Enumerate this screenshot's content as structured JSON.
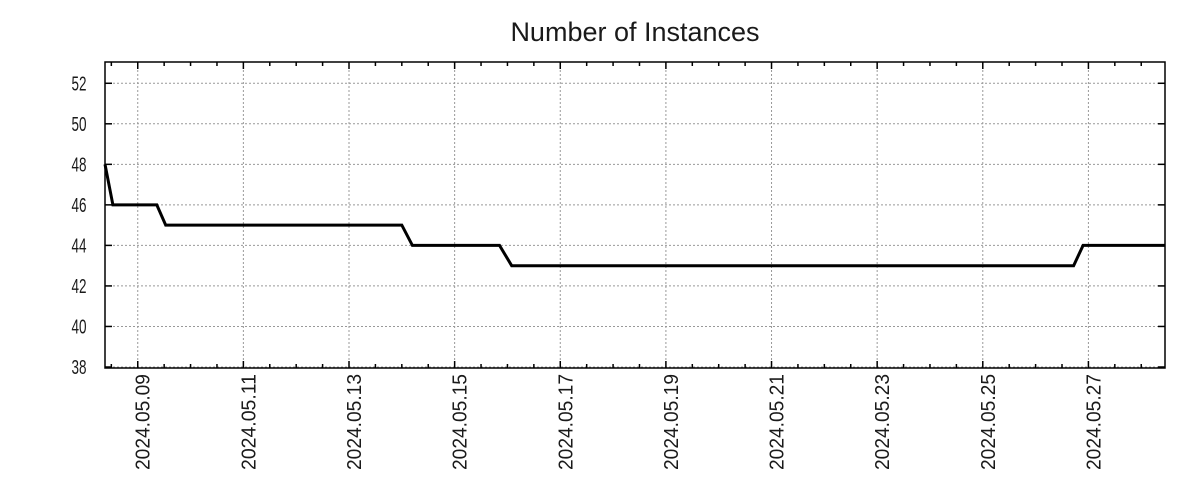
{
  "chart_data": {
    "type": "line",
    "title": "Number of Instances",
    "xlabel": "",
    "ylabel": "",
    "grid": true,
    "legend": "none",
    "x_unit": "day of May 2024 (fractional)",
    "xlim": [
      8.38,
      28.45
    ],
    "ylim": [
      37.95,
      53.05
    ],
    "x_minor_step": 0.5,
    "x_ticks": [
      {
        "day": 9,
        "label": "2024.05.09"
      },
      {
        "day": 11,
        "label": "2024.05.11"
      },
      {
        "day": 13,
        "label": "2024.05.13"
      },
      {
        "day": 15,
        "label": "2024.05.15"
      },
      {
        "day": 17,
        "label": "2024.05.17"
      },
      {
        "day": 19,
        "label": "2024.05.19"
      },
      {
        "day": 21,
        "label": "2024.05.21"
      },
      {
        "day": 23,
        "label": "2024.05.23"
      },
      {
        "day": 25,
        "label": "2024.05.25"
      },
      {
        "day": 27,
        "label": "2024.05.27"
      }
    ],
    "y_ticks": [
      38,
      40,
      42,
      44,
      46,
      48,
      50,
      52
    ],
    "series": [
      {
        "name": "instances",
        "color": "#000000",
        "points": [
          [
            8.38,
            48
          ],
          [
            8.53,
            46
          ],
          [
            9.36,
            46
          ],
          [
            9.53,
            45
          ],
          [
            14.0,
            45
          ],
          [
            14.2,
            44
          ],
          [
            15.85,
            44
          ],
          [
            16.08,
            43
          ],
          [
            26.72,
            43
          ],
          [
            26.9,
            44
          ],
          [
            28.45,
            44
          ]
        ]
      }
    ],
    "colors": {
      "line": "#000000",
      "grid": "#999999",
      "axis": "#000000",
      "text": "#1a1a1a",
      "background": "#ffffff"
    }
  }
}
